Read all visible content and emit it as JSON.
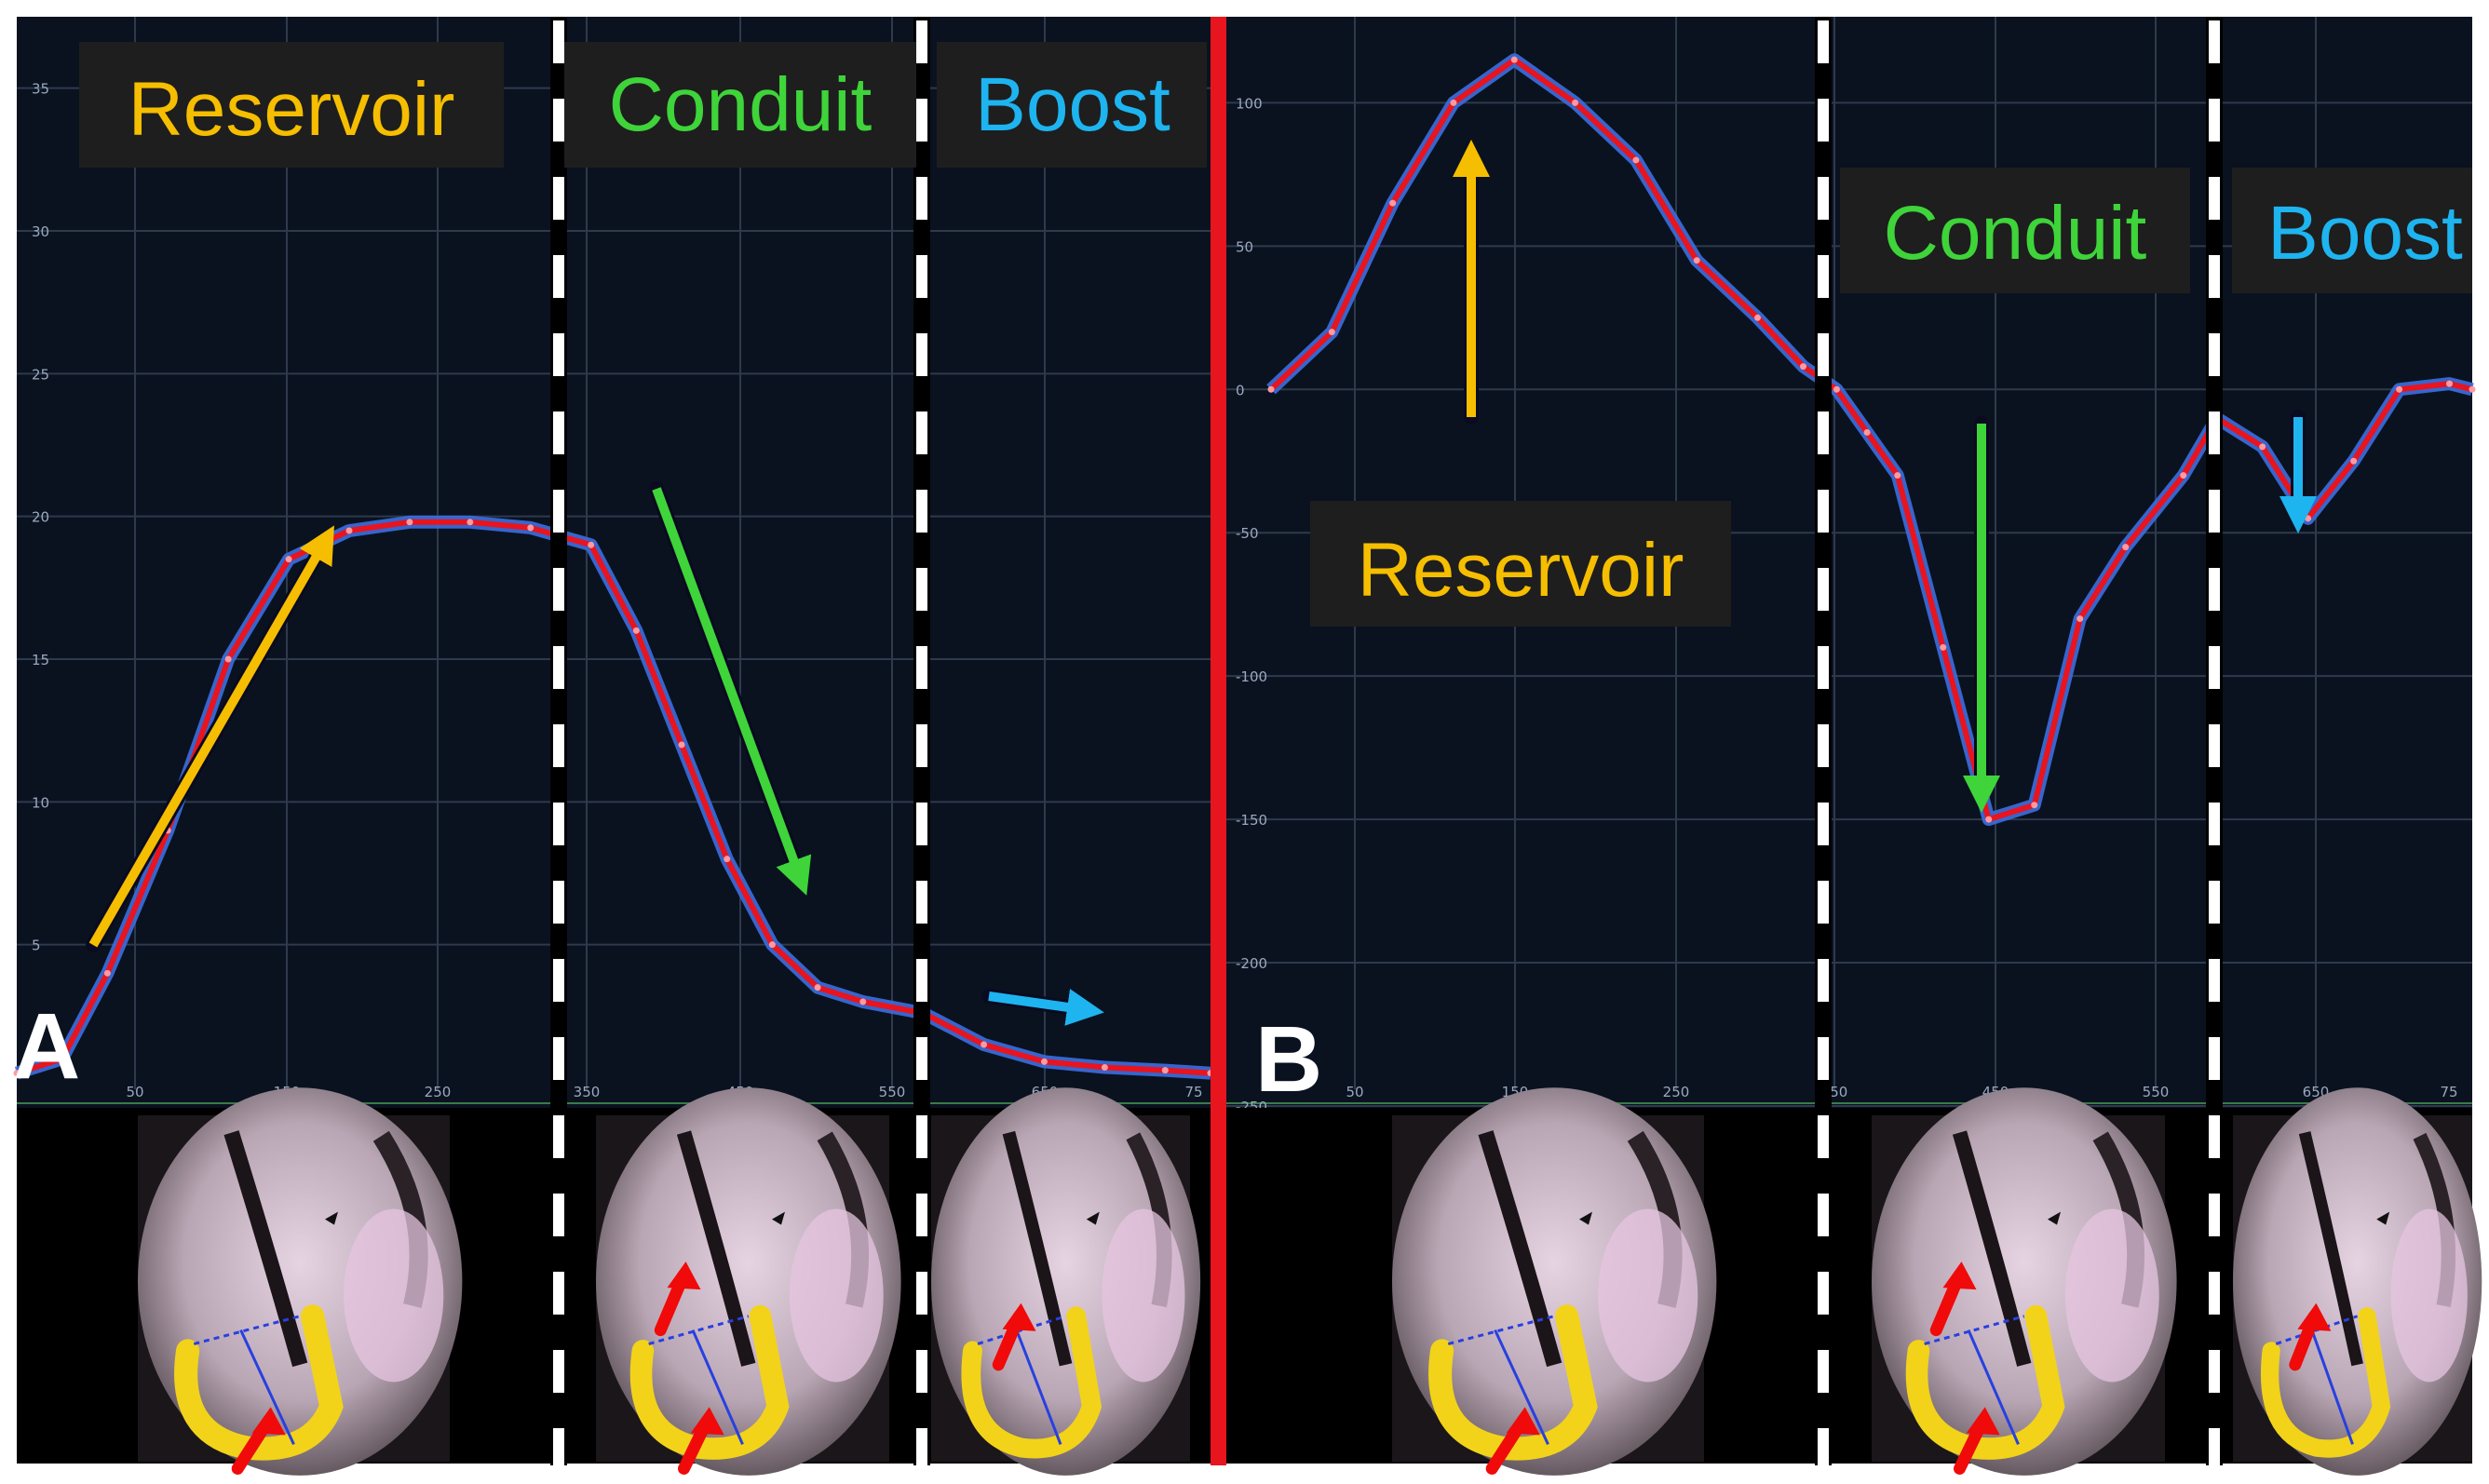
{
  "colors": {
    "reservoir": "#F6BE00",
    "conduit": "#3ED43A",
    "boost": "#1EB4F0",
    "curve": "#E8141E",
    "curve_glow": "#3B6FE0",
    "panel_bg": "#0A1220",
    "grid": "#2E3A4C",
    "label_box": "#1E1E1E",
    "divider": "#FFFFFF",
    "separator": "#E8141E"
  },
  "chart_data": [
    {
      "type": "line",
      "panel_letter": "A",
      "x_ticks": [
        "50",
        "150",
        "250",
        "350",
        "450",
        "550",
        "650",
        "75"
      ],
      "y_ticks": [
        "5",
        "10",
        "15",
        "20",
        "25",
        "30",
        "35"
      ],
      "xlim": [
        0,
        790
      ],
      "ylim": [
        0,
        37.5
      ],
      "phases": [
        {
          "name": "Reservoir",
          "color_key": "reservoir"
        },
        {
          "name": "Conduit",
          "color_key": "conduit"
        },
        {
          "name": "Boost",
          "color_key": "boost"
        }
      ],
      "series": [
        {
          "x": [
            0,
            30,
            60,
            100,
            140,
            180,
            220,
            260,
            300,
            340,
            380,
            410,
            440,
            470,
            500,
            530,
            560,
            600,
            640,
            680,
            720,
            760,
            790
          ],
          "y": [
            0.5,
            1.0,
            4.0,
            9.0,
            15.0,
            18.5,
            19.5,
            19.8,
            19.8,
            19.6,
            19.0,
            16.0,
            12.0,
            8.0,
            5.0,
            3.5,
            3.0,
            2.6,
            1.5,
            0.9,
            0.7,
            0.6,
            0.5
          ]
        }
      ]
    },
    {
      "type": "line",
      "panel_letter": "B",
      "x_ticks": [
        "50",
        "150",
        "250",
        "350",
        "450",
        "550",
        "650",
        "75"
      ],
      "y_ticks": [
        "100",
        "50",
        "0",
        "-50",
        "-100",
        "-150",
        "-200",
        "-250"
      ],
      "xlim": [
        0,
        790
      ],
      "ylim": [
        -250,
        130
      ],
      "phases": [
        {
          "name": "Reservoir",
          "color_key": "reservoir"
        },
        {
          "name": "Conduit",
          "color_key": "conduit"
        },
        {
          "name": "Boost",
          "color_key": "boost"
        }
      ],
      "series": [
        {
          "x": [
            0,
            40,
            80,
            120,
            160,
            200,
            240,
            280,
            320,
            350,
            372,
            392,
            412,
            442,
            472,
            502,
            532,
            562,
            600,
            622,
            652,
            682,
            712,
            742,
            775,
            790
          ],
          "y": [
            0,
            20,
            65,
            100,
            115,
            100,
            80,
            45,
            25,
            8,
            0,
            -15,
            -30,
            -90,
            -150,
            -145,
            -80,
            -55,
            -30,
            -10,
            -20,
            -45,
            -25,
            0,
            2,
            0
          ]
        }
      ]
    }
  ]
}
